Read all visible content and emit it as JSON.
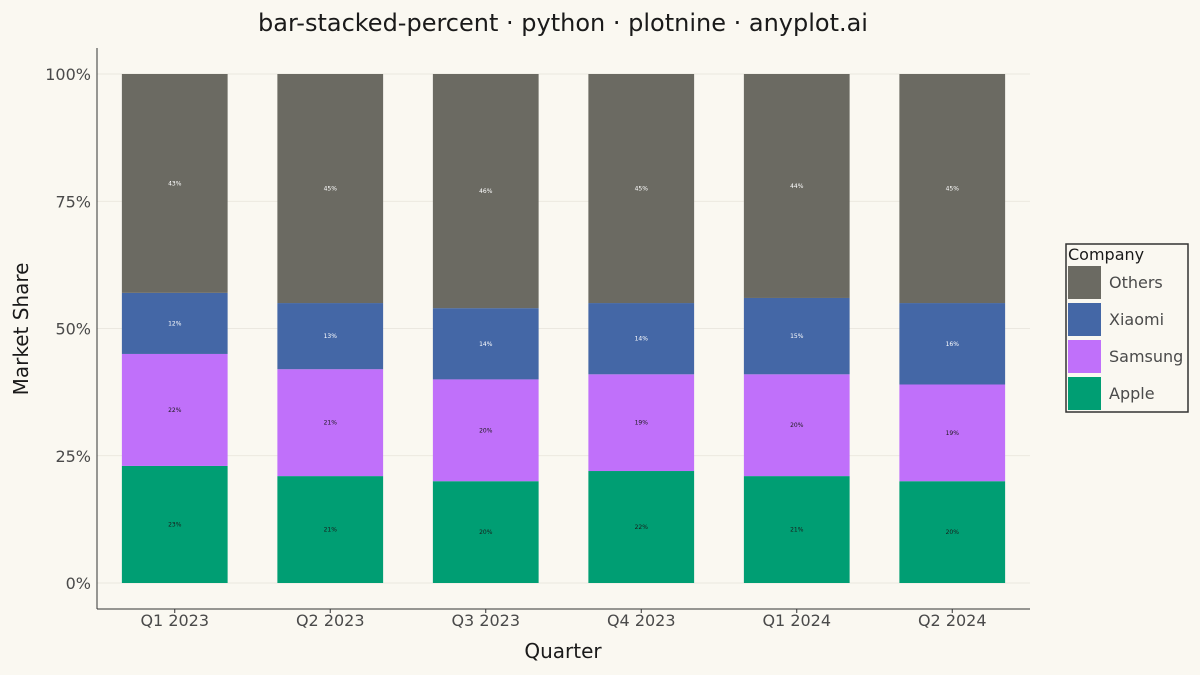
{
  "chart_data": {
    "type": "bar",
    "stacked": "percent",
    "title": "bar-stacked-percent · python · plotnine · anyplot.ai",
    "xlabel": "Quarter",
    "ylabel": "Market Share",
    "ylim": [
      0,
      100
    ],
    "y_ticks": [
      "0%",
      "25%",
      "50%",
      "75%",
      "100%"
    ],
    "y_tick_values": [
      0,
      25,
      50,
      75,
      100
    ],
    "grid": true,
    "legend": {
      "title": "Company",
      "position": "right"
    },
    "categories": [
      "Q1 2023",
      "Q2 2023",
      "Q3 2023",
      "Q4 2023",
      "Q1 2024",
      "Q2 2024"
    ],
    "series": [
      {
        "name": "Apple",
        "color": "#009E73",
        "label_color": "#1a1a1a",
        "values": [
          23,
          21,
          20,
          22,
          21,
          20
        ]
      },
      {
        "name": "Samsung",
        "color": "#C070FA",
        "label_color": "#1a1a1a",
        "values": [
          22,
          21,
          20,
          19,
          20,
          19
        ]
      },
      {
        "name": "Xiaomi",
        "color": "#4467A6",
        "label_color": "#FFFFFF",
        "values": [
          12,
          13,
          14,
          14,
          15,
          16
        ]
      },
      {
        "name": "Others",
        "color": "#6B6A62",
        "label_color": "#FFFFFF",
        "values": [
          43,
          45,
          46,
          45,
          44,
          45
        ]
      }
    ]
  }
}
